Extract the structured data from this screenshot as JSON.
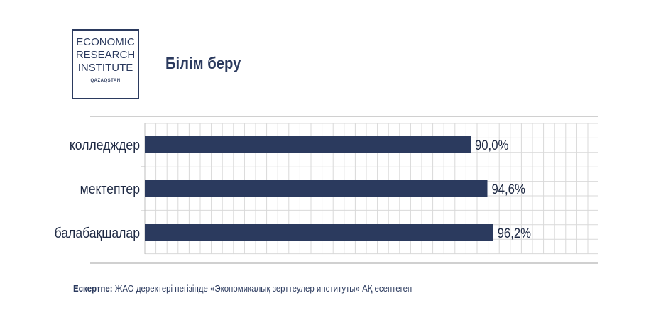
{
  "logo": {
    "lines": [
      "ECONOMIC",
      "RESEARCH",
      "INSTITUTE"
    ],
    "sub": "QAZAQSTAN"
  },
  "title": "Білім беру",
  "note": {
    "label": "Ескертпе:",
    "text": "ЖАО деректері негізінде «Экономикалық зерттеулер институты» АҚ есептеген"
  },
  "colors": {
    "bar": "#2b3a5e",
    "grid": "#d9d9d9",
    "text": "#1f2a44"
  },
  "chart_data": {
    "type": "bar",
    "orientation": "horizontal",
    "categories": [
      "колледждер",
      "мектептер",
      "балабақшалар"
    ],
    "values": [
      90.0,
      94.6,
      96.2
    ],
    "value_labels": [
      "90,0%",
      "94,6%",
      "96,2%"
    ],
    "xlim": [
      0,
      125
    ],
    "grid": true,
    "title": "",
    "xlabel": "",
    "ylabel": ""
  }
}
